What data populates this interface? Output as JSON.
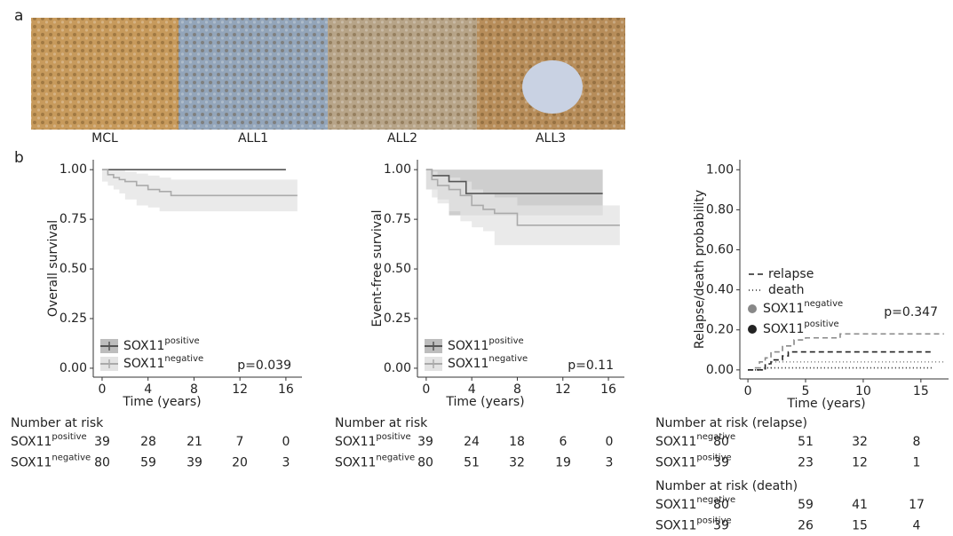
{
  "panel_a": {
    "label": "a",
    "images": [
      "MCL",
      "ALL1",
      "ALL2",
      "ALL3"
    ]
  },
  "panel_b": {
    "label": "b"
  },
  "chart_data": [
    {
      "type": "step",
      "ylabel": "Overall survival",
      "xlabel": "Time (years)",
      "annotation": "p=0.039",
      "legend_position": "bottom-left",
      "xlim": [
        -0.77,
        17.4
      ],
      "ylim": [
        -0.045,
        1.05
      ],
      "xticks": [
        0,
        4,
        8,
        12,
        16
      ],
      "yticks": [
        {
          "value": 0,
          "label": "0.00"
        },
        {
          "value": 0.25,
          "label": "0.25"
        },
        {
          "value": 0.5,
          "label": "0.50"
        },
        {
          "value": 0.75,
          "label": "0.75"
        },
        {
          "value": 1,
          "label": "1.00"
        }
      ],
      "series": [
        {
          "name": "SOX11",
          "superscript": "positive",
          "color": "#555555",
          "band_color": "#bdbdbd",
          "x": [
            0,
            16
          ],
          "values": [
            1,
            1
          ]
        },
        {
          "name": "SOX11",
          "superscript": "negative",
          "color": "#aaaaaa",
          "band_color": "#e3e3e3",
          "x": [
            0,
            0.5,
            1,
            1.5,
            2,
            3,
            4,
            5,
            6,
            17
          ],
          "values": [
            1,
            0.975,
            0.96,
            0.95,
            0.94,
            0.92,
            0.9,
            0.89,
            0.87,
            0.87
          ],
          "lower": [
            1,
            0.94,
            0.92,
            0.9,
            0.88,
            0.85,
            0.82,
            0.81,
            0.79,
            0.79
          ],
          "upper": [
            1,
            1,
            1,
            1,
            0.99,
            0.98,
            0.97,
            0.96,
            0.95,
            0.95
          ]
        }
      ]
    },
    {
      "type": "step",
      "ylabel": "Event-free survival",
      "xlabel": "Time (years)",
      "annotation": "p=0.11",
      "legend_position": "bottom-left",
      "xlim": [
        -0.77,
        17.4
      ],
      "ylim": [
        -0.045,
        1.05
      ],
      "xticks": [
        0,
        4,
        8,
        12,
        16
      ],
      "yticks": [
        {
          "value": 0,
          "label": "0.00"
        },
        {
          "value": 0.25,
          "label": "0.25"
        },
        {
          "value": 0.5,
          "label": "0.50"
        },
        {
          "value": 0.75,
          "label": "0.75"
        },
        {
          "value": 1,
          "label": "1.00"
        }
      ],
      "series": [
        {
          "name": "SOX11",
          "superscript": "positive",
          "color": "#555555",
          "band_color": "#bdbdbd",
          "x": [
            0,
            0.5,
            1,
            2,
            3.5,
            15.5
          ],
          "values": [
            1,
            0.97,
            0.97,
            0.94,
            0.88,
            0.88
          ],
          "lower": [
            1,
            0.9,
            0.9,
            0.85,
            0.77,
            0.77
          ],
          "upper": [
            1,
            1,
            1,
            1,
            1,
            1
          ]
        },
        {
          "name": "SOX11",
          "superscript": "negative",
          "color": "#aaaaaa",
          "band_color": "#e3e3e3",
          "x": [
            0,
            0.5,
            1,
            2,
            3,
            4,
            5,
            6,
            8,
            17
          ],
          "values": [
            1,
            0.95,
            0.92,
            0.9,
            0.87,
            0.82,
            0.8,
            0.78,
            0.72,
            0.72
          ],
          "lower": [
            1,
            0.9,
            0.86,
            0.83,
            0.79,
            0.74,
            0.71,
            0.69,
            0.62,
            0.62
          ],
          "upper": [
            1,
            0.99,
            0.97,
            0.96,
            0.94,
            0.9,
            0.88,
            0.86,
            0.82,
            0.84
          ]
        }
      ]
    },
    {
      "type": "step",
      "ylabel": "Relapse/death probability",
      "xlabel": "Time (years)",
      "annotation": "p=0.347",
      "legend_position": "center-left",
      "xlim": [
        -0.7,
        17.4
      ],
      "ylim": [
        -0.045,
        1.05
      ],
      "xticks": [
        0,
        5,
        10,
        15
      ],
      "yticks": [
        {
          "value": 0,
          "label": "0.00"
        },
        {
          "value": 0.2,
          "label": "0.20"
        },
        {
          "value": 0.4,
          "label": "0.40"
        },
        {
          "value": 0.6,
          "label": "0.60"
        },
        {
          "value": 0.8,
          "label": "0.80"
        },
        {
          "value": 1,
          "label": "1.00"
        }
      ],
      "legend": {
        "linestyles": [
          {
            "label": "relapse",
            "dash": "6,4"
          },
          {
            "label": "death",
            "dash": "1,3"
          }
        ],
        "groups": [
          {
            "name": "SOX11",
            "superscript": "negative",
            "color": "#888888"
          },
          {
            "name": "SOX11",
            "superscript": "positive",
            "color": "#222222"
          }
        ]
      },
      "series": [
        {
          "group": 0,
          "linestyle": 0,
          "x": [
            0,
            0.5,
            1,
            1.5,
            2,
            3,
            4,
            5,
            8,
            17
          ],
          "values": [
            0,
            0.01,
            0.04,
            0.06,
            0.09,
            0.12,
            0.15,
            0.16,
            0.18,
            0.18
          ]
        },
        {
          "group": 1,
          "linestyle": 0,
          "x": [
            0,
            1.5,
            2,
            3,
            3.5,
            16
          ],
          "values": [
            0,
            0.03,
            0.05,
            0.07,
            0.09,
            0.09
          ]
        },
        {
          "group": 0,
          "linestyle": 1,
          "x": [
            0,
            1,
            2,
            17
          ],
          "values": [
            0,
            0.01,
            0.04,
            0.04
          ]
        },
        {
          "group": 1,
          "linestyle": 1,
          "x": [
            0,
            1.5,
            16
          ],
          "values": [
            0,
            0.01,
            0.01
          ]
        }
      ]
    }
  ],
  "risk_tables": [
    {
      "title": "Number at risk",
      "rows": [
        {
          "name": "SOX11",
          "superscript": "positive",
          "values": [
            39,
            28,
            21,
            7,
            0
          ]
        },
        {
          "name": "SOX11",
          "superscript": "negative",
          "values": [
            80,
            59,
            39,
            20,
            3
          ]
        }
      ]
    },
    {
      "title": "Number at risk",
      "rows": [
        {
          "name": "SOX11",
          "superscript": "positive",
          "values": [
            39,
            24,
            18,
            6,
            0
          ]
        },
        {
          "name": "SOX11",
          "superscript": "negative",
          "values": [
            80,
            51,
            32,
            19,
            3
          ]
        }
      ]
    },
    {
      "title": "Number at risk (relapse)",
      "rows": [
        {
          "name": "SOX11",
          "superscript": "negative",
          "values": [
            80,
            51,
            32,
            8
          ]
        },
        {
          "name": "SOX11",
          "superscript": "positive",
          "values": [
            39,
            23,
            12,
            1
          ]
        }
      ]
    },
    {
      "title": "Number at risk (death)",
      "rows": [
        {
          "name": "SOX11",
          "superscript": "negative",
          "values": [
            80,
            59,
            41,
            17
          ]
        },
        {
          "name": "SOX11",
          "superscript": "positive",
          "values": [
            39,
            26,
            15,
            4
          ]
        }
      ]
    }
  ]
}
